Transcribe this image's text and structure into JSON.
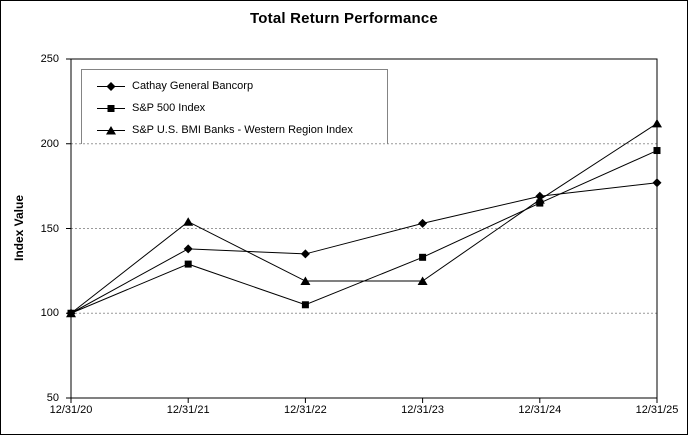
{
  "chart_data": {
    "type": "line",
    "title": "Total Return Performance",
    "ylabel": "Index Value",
    "xlabel": "",
    "categories": [
      "12/31/20",
      "12/31/21",
      "12/31/22",
      "12/31/23",
      "12/31/24",
      "12/31/25"
    ],
    "series": [
      {
        "name": "Cathay General Bancorp",
        "marker": "diamond",
        "color": "#000000",
        "values": [
          100,
          138,
          135,
          153,
          169,
          177
        ]
      },
      {
        "name": "S&P 500 Index",
        "marker": "square",
        "color": "#000000",
        "values": [
          100,
          129,
          105,
          133,
          165,
          196
        ]
      },
      {
        "name": "S&P U.S. BMI Banks - Western Region Index",
        "marker": "triangle",
        "color": "#000000",
        "values": [
          100,
          154,
          119,
          119,
          167,
          212
        ]
      }
    ],
    "ylim": [
      50,
      250
    ],
    "yticks": [
      50,
      100,
      150,
      200,
      250
    ],
    "gridline_values": [
      100,
      150,
      200
    ],
    "grid": "horizontal-dashed",
    "gridline_color": "#999999",
    "axis_color": "#000000",
    "legend_position": "top-left-inside",
    "legend_border_color": "#848484"
  }
}
